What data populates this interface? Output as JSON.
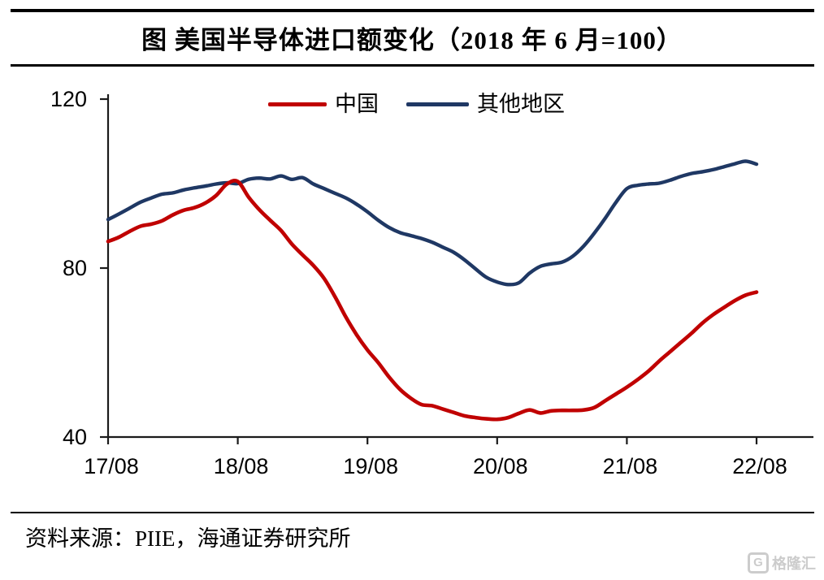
{
  "header": {
    "title": "图 美国半导体进口额变化（2018 年 6 月=100）"
  },
  "footer": {
    "source": "资料来源：PIIE，海通证券研究所"
  },
  "watermark": {
    "icon": "G",
    "text": "格隆汇"
  },
  "colors": {
    "china_red": "#c00000",
    "other_navy": "#1f3864",
    "axis": "#1a1a1a",
    "watermark_gray": "#cccccc"
  },
  "chart_data": {
    "type": "line",
    "title": "图 美国半导体进口额变化（2018 年 6 月=100）",
    "xlabel": "",
    "ylabel": "",
    "x_start": "2017-08",
    "x_end": "2022-08",
    "x_interval": "monthly",
    "x_tick_labels": [
      "17/08",
      "18/08",
      "19/08",
      "20/08",
      "21/08",
      "22/08"
    ],
    "y_ticks": [
      40,
      80,
      120
    ],
    "ylim": [
      40,
      120
    ],
    "grid": false,
    "legend_position": "top",
    "series": [
      {
        "name": "中国",
        "color": "#c00000",
        "values": [
          86.3,
          87.3,
          88.7,
          89.9,
          90.4,
          91.2,
          92.6,
          93.7,
          94.3,
          95.4,
          97.2,
          99.9,
          100.5,
          96.8,
          93.8,
          91.3,
          88.9,
          85.7,
          83.1,
          80.6,
          77.5,
          73.2,
          68.4,
          64.2,
          60.6,
          57.6,
          54.2,
          51.3,
          49.2,
          47.7,
          47.4,
          46.6,
          45.8,
          45.0,
          44.6,
          44.3,
          44.2,
          44.6,
          45.6,
          46.4,
          45.7,
          46.2,
          46.3,
          46.3,
          46.4,
          47.0,
          48.6,
          50.2,
          51.8,
          53.6,
          55.6,
          58.0,
          60.2,
          62.4,
          64.6,
          67.0,
          69.0,
          70.7,
          72.3,
          73.6,
          74.3
        ]
      },
      {
        "name": "其他地区",
        "color": "#1f3864",
        "values": [
          91.5,
          92.8,
          94.2,
          95.6,
          96.6,
          97.5,
          97.8,
          98.5,
          99.0,
          99.4,
          99.9,
          100.2,
          100.0,
          101.0,
          101.3,
          101.1,
          101.8,
          101.0,
          101.4,
          99.9,
          98.8,
          97.7,
          96.6,
          95.1,
          93.3,
          91.3,
          89.6,
          88.4,
          87.7,
          87.0,
          86.1,
          84.9,
          83.7,
          81.9,
          79.8,
          77.8,
          76.7,
          76.1,
          76.5,
          78.8,
          80.4,
          81.0,
          81.4,
          82.8,
          85.2,
          88.3,
          91.8,
          95.6,
          98.8,
          99.6,
          99.9,
          100.1,
          100.8,
          101.7,
          102.4,
          102.8,
          103.3,
          104.0,
          104.7,
          105.3,
          104.6
        ]
      }
    ]
  }
}
